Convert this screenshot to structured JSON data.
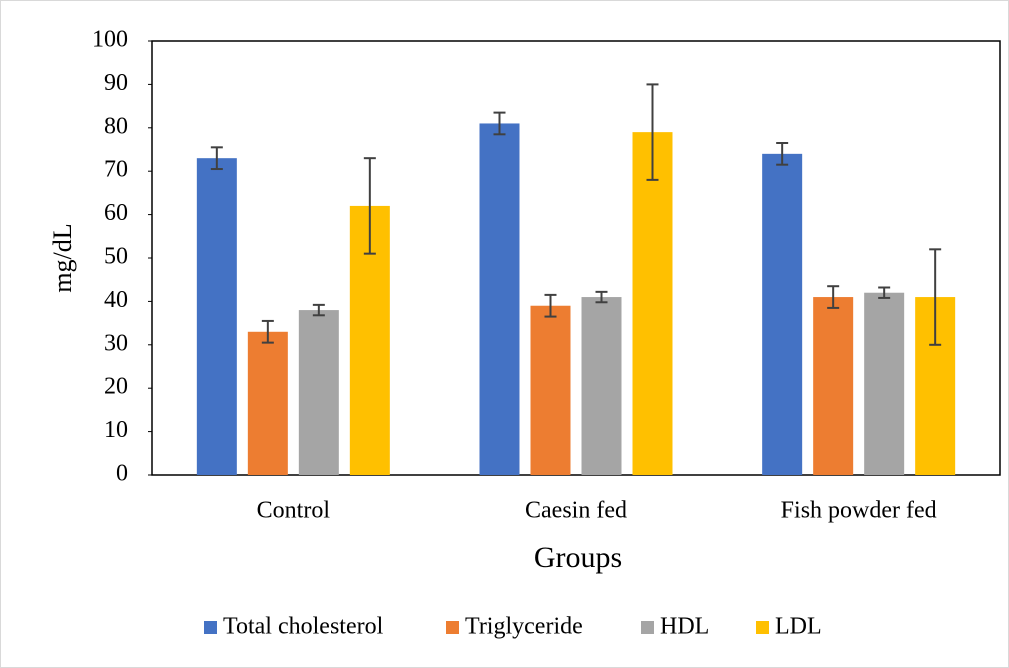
{
  "chart_data": {
    "type": "bar",
    "x_label": "Groups",
    "y_label": "mg/dL",
    "categories": [
      "Control",
      "Caesin fed",
      "Fish powder fed"
    ],
    "series": [
      {
        "name": "Total cholesterol",
        "color": "#4472c4",
        "values": [
          73,
          81,
          74
        ],
        "errors": [
          2.5,
          2.5,
          2.5
        ]
      },
      {
        "name": "Triglyceride",
        "color": "#ed7d31",
        "values": [
          33,
          39,
          41
        ],
        "errors": [
          2.5,
          2.5,
          2.5
        ]
      },
      {
        "name": "HDL",
        "color": "#a5a5a5",
        "values": [
          38,
          41,
          42
        ],
        "errors": [
          1.2,
          1.2,
          1.2
        ]
      },
      {
        "name": "LDL",
        "color": "#ffc000",
        "values": [
          62,
          79,
          41
        ],
        "errors": [
          11,
          11,
          11
        ]
      }
    ],
    "ylim": [
      0,
      100
    ],
    "yticks": [
      0,
      10,
      20,
      30,
      40,
      50,
      60,
      70,
      80,
      90,
      100
    ],
    "grid": false,
    "legend": "bottom"
  }
}
